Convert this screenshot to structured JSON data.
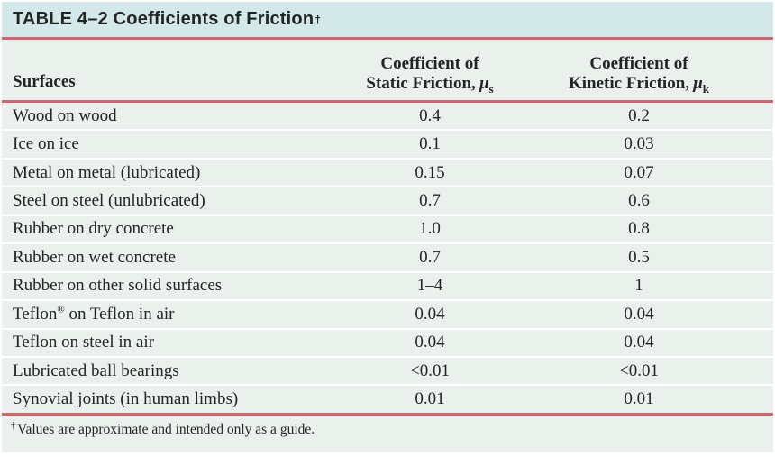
{
  "table": {
    "title": "TABLE 4–2  Coefficients of Friction",
    "title_dagger": "†",
    "columns": {
      "surfaces": "Surfaces",
      "static": {
        "line1": "Coefficient of",
        "line2": "Static Friction,",
        "symbol": "μ",
        "sub": "s"
      },
      "kinetic": {
        "line1": "Coefficient of",
        "line2": "Kinetic Friction,",
        "symbol": "μ",
        "sub": "k"
      }
    },
    "rows": [
      {
        "surface": "Wood on wood",
        "static": "0.4",
        "kinetic": "0.2"
      },
      {
        "surface": "Ice on ice",
        "static": "0.1",
        "kinetic": "0.03"
      },
      {
        "surface": "Metal on metal (lubricated)",
        "static": "0.15",
        "kinetic": "0.07"
      },
      {
        "surface": "Steel on steel (unlubricated)",
        "static": "0.7",
        "kinetic": "0.6"
      },
      {
        "surface": "Rubber on dry concrete",
        "static": "1.0",
        "kinetic": "0.8"
      },
      {
        "surface": "Rubber on wet concrete",
        "static": "0.7",
        "kinetic": "0.5"
      },
      {
        "surface": "Rubber on other solid surfaces",
        "static": "1–4",
        "kinetic": "1"
      },
      {
        "surface": "Teflon® on Teflon in air",
        "static": "0.04",
        "kinetic": "0.04"
      },
      {
        "surface": "Teflon on steel in air",
        "static": "0.04",
        "kinetic": "0.04"
      },
      {
        "surface": "Lubricated ball bearings",
        "static": "<0.01",
        "kinetic": "<0.01"
      },
      {
        "surface": "Synovial joints (in human limbs)",
        "static": "0.01",
        "kinetic": "0.01"
      }
    ],
    "footnote": {
      "dagger": "†",
      "text": "Values are approximate and intended only as a guide."
    },
    "colors": {
      "title_bg": "#d3e8e8",
      "body_bg": "#eaf1ec",
      "rule_red": "#da606c",
      "row_separator": "#ffffff",
      "text": "#232424"
    }
  }
}
